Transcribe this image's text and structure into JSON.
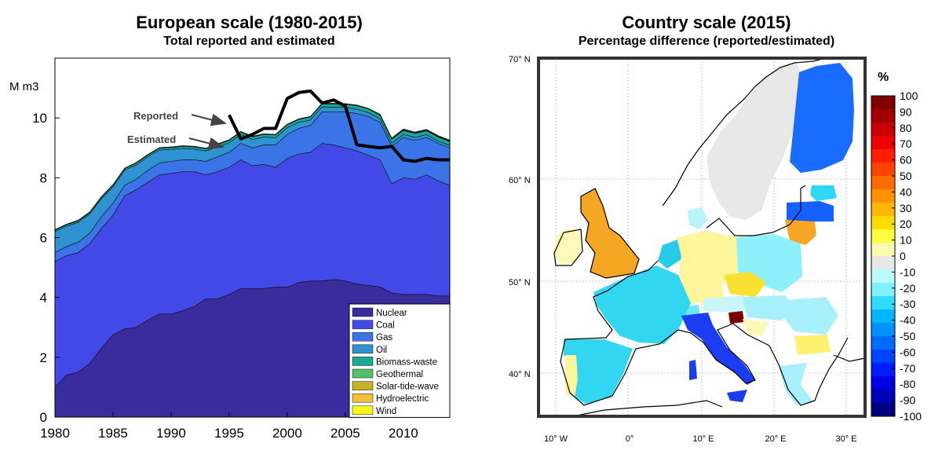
{
  "left_panel": {
    "title": "European scale (1980-2015)",
    "subtitle": "Total reported and estimated",
    "ylabel": "M m3",
    "annotations": {
      "reported": "Reported",
      "estimated": "Estimated"
    }
  },
  "right_panel": {
    "title": "Country scale (2015)",
    "subtitle": "Percentage difference (reported/estimated)",
    "colorbar_label": "%",
    "lat_labels": [
      "70° N",
      "60° N",
      "50° N",
      "40° N"
    ],
    "lon_labels": [
      "10° W",
      "0°",
      "10° E",
      "20° E",
      "30° E"
    ]
  },
  "chart_data": [
    {
      "type": "area",
      "stacked": true,
      "title": "European scale (1980-2015)",
      "subtitle": "Total reported and estimated",
      "ylabel": "M m3",
      "xlim": [
        1980,
        2014
      ],
      "ylim": [
        0,
        12
      ],
      "xticks": [
        1980,
        1985,
        1990,
        1995,
        2000,
        2005,
        2010
      ],
      "yticks": [
        0,
        2,
        4,
        6,
        8,
        10
      ],
      "grid": false,
      "legend_position": "bottom-right",
      "x": [
        1980,
        1981,
        1982,
        1983,
        1984,
        1985,
        1986,
        1987,
        1988,
        1989,
        1990,
        1991,
        1992,
        1993,
        1994,
        1995,
        1996,
        1997,
        1998,
        1999,
        2000,
        2001,
        2002,
        2003,
        2004,
        2005,
        2006,
        2007,
        2008,
        2009,
        2010,
        2011,
        2012,
        2013,
        2014
      ],
      "series": [
        {
          "name": "Nuclear",
          "color": "#3a2c9c",
          "values": [
            1.0,
            1.4,
            1.5,
            1.8,
            2.3,
            2.75,
            2.95,
            3.0,
            3.25,
            3.45,
            3.45,
            3.55,
            3.7,
            3.95,
            3.95,
            4.1,
            4.3,
            4.3,
            4.3,
            4.35,
            4.35,
            4.5,
            4.55,
            4.55,
            4.6,
            4.55,
            4.45,
            4.4,
            4.35,
            4.15,
            4.1,
            4.1,
            4.1,
            4.05,
            4.05
          ]
        },
        {
          "name": "Coal",
          "color": "#4249e6",
          "values": [
            4.2,
            4.0,
            4.0,
            4.0,
            4.0,
            4.0,
            4.45,
            4.6,
            4.6,
            4.65,
            4.7,
            4.65,
            4.5,
            4.15,
            4.25,
            4.25,
            4.3,
            4.1,
            4.15,
            4.0,
            4.3,
            4.3,
            4.3,
            4.6,
            4.5,
            4.45,
            4.45,
            4.35,
            4.25,
            3.65,
            3.9,
            3.85,
            4.0,
            3.85,
            3.7
          ]
        },
        {
          "name": "Gas",
          "color": "#3a74e6",
          "values": [
            0.3,
            0.3,
            0.35,
            0.35,
            0.4,
            0.4,
            0.35,
            0.35,
            0.4,
            0.4,
            0.4,
            0.4,
            0.4,
            0.45,
            0.5,
            0.5,
            0.55,
            0.6,
            0.65,
            0.75,
            0.8,
            0.85,
            0.9,
            1.05,
            1.1,
            1.2,
            1.25,
            1.3,
            1.25,
            1.25,
            1.35,
            1.3,
            1.25,
            1.25,
            1.25
          ]
        },
        {
          "name": "Oil",
          "color": "#2e93d0",
          "values": [
            0.7,
            0.68,
            0.66,
            0.64,
            0.6,
            0.55,
            0.5,
            0.48,
            0.45,
            0.43,
            0.4,
            0.38,
            0.36,
            0.35,
            0.33,
            0.32,
            0.3,
            0.28,
            0.26,
            0.24,
            0.22,
            0.2,
            0.18,
            0.17,
            0.16,
            0.15,
            0.14,
            0.13,
            0.12,
            0.11,
            0.1,
            0.1,
            0.09,
            0.08,
            0.08
          ]
        },
        {
          "name": "Biomass-waste",
          "color": "#19a79a",
          "values": [
            0.05,
            0.05,
            0.05,
            0.05,
            0.05,
            0.05,
            0.05,
            0.06,
            0.06,
            0.06,
            0.06,
            0.07,
            0.07,
            0.07,
            0.08,
            0.08,
            0.08,
            0.09,
            0.09,
            0.09,
            0.1,
            0.1,
            0.1,
            0.1,
            0.11,
            0.11,
            0.12,
            0.12,
            0.12,
            0.13,
            0.13,
            0.13,
            0.13,
            0.13,
            0.13
          ]
        },
        {
          "name": "Geothermal",
          "color": "#52c26a",
          "values": [
            0.01,
            0.01,
            0.01,
            0.01,
            0.01,
            0.01,
            0.01,
            0.01,
            0.01,
            0.01,
            0.01,
            0.01,
            0.01,
            0.01,
            0.01,
            0.01,
            0.01,
            0.01,
            0.01,
            0.01,
            0.01,
            0.01,
            0.01,
            0.01,
            0.01,
            0.01,
            0.01,
            0.01,
            0.01,
            0.01,
            0.01,
            0.01,
            0.01,
            0.01,
            0.01
          ]
        },
        {
          "name": "Solar-tide-wave",
          "color": "#c4b323",
          "values": [
            0.0,
            0.0,
            0.0,
            0.0,
            0.0,
            0.0,
            0.0,
            0.0,
            0.0,
            0.0,
            0.0,
            0.0,
            0.0,
            0.0,
            0.0,
            0.0,
            0.0,
            0.0,
            0.0,
            0.0,
            0.0,
            0.0,
            0.0,
            0.0,
            0.0,
            0.0,
            0.0,
            0.0,
            0.01,
            0.01,
            0.02,
            0.02,
            0.02,
            0.02,
            0.02
          ]
        },
        {
          "name": "Hydroelectric",
          "color": "#f2bf36",
          "values": [
            0.01,
            0.01,
            0.01,
            0.01,
            0.01,
            0.01,
            0.01,
            0.01,
            0.01,
            0.01,
            0.01,
            0.01,
            0.01,
            0.01,
            0.01,
            0.01,
            0.01,
            0.01,
            0.01,
            0.01,
            0.01,
            0.01,
            0.01,
            0.01,
            0.01,
            0.01,
            0.01,
            0.01,
            0.01,
            0.01,
            0.01,
            0.01,
            0.01,
            0.01,
            0.01
          ]
        },
        {
          "name": "Wind",
          "color": "#f7f71e",
          "values": [
            0.0,
            0.0,
            0.0,
            0.0,
            0.0,
            0.0,
            0.0,
            0.0,
            0.0,
            0.0,
            0.0,
            0.0,
            0.0,
            0.0,
            0.0,
            0.0,
            0.0,
            0.0,
            0.0,
            0.0,
            0.0,
            0.0,
            0.0,
            0.0,
            0.0,
            0.0,
            0.0,
            0.0,
            0.0,
            0.01,
            0.01,
            0.01,
            0.01,
            0.01,
            0.01
          ]
        }
      ],
      "lines": [
        {
          "name": "Reported",
          "color": "#000000",
          "x": [
            1995,
            1996,
            1997,
            1998,
            1999,
            2000,
            2001,
            2002,
            2003,
            2004,
            2005,
            2006,
            2007,
            2008,
            2009,
            2010,
            2011,
            2012,
            2013,
            2014
          ],
          "values": [
            10.1,
            9.3,
            9.45,
            9.65,
            9.65,
            10.65,
            10.85,
            10.9,
            10.5,
            10.6,
            10.4,
            9.1,
            9.05,
            9.0,
            9.05,
            8.6,
            8.55,
            8.65,
            8.6,
            8.6
          ]
        }
      ],
      "annotations": [
        {
          "text": "Reported",
          "points_to": "Reported line at 1995"
        },
        {
          "text": "Estimated",
          "points_to": "Stacked total at 1995"
        }
      ]
    },
    {
      "type": "heatmap",
      "title": "Country scale (2015)",
      "subtitle": "Percentage difference (reported/estimated)",
      "colorbar": {
        "label": "%",
        "ticks": [
          100,
          90,
          80,
          70,
          60,
          50,
          40,
          30,
          20,
          10,
          0,
          -10,
          -20,
          -30,
          -40,
          -50,
          -60,
          -70,
          -80,
          -90,
          -100
        ],
        "colors": [
          "#800000",
          "#a40000",
          "#c80000",
          "#ec0000",
          "#ff1e00",
          "#ff4300",
          "#ff6b00",
          "#ff9100",
          "#ffb600",
          "#ffdb00",
          "#ffff40",
          "#fbfbb0",
          "#e8e8e8",
          "#b8fbfb",
          "#80f0ff",
          "#33dbff",
          "#00b6ff",
          "#0091ff",
          "#006bff",
          "#0043ff",
          "#001eff",
          "#0000e6",
          "#0000b8",
          "#000080"
        ],
        "range": [
          -100,
          100
        ]
      },
      "lat_ticks": [
        70,
        60,
        50,
        40
      ],
      "lon_ticks": [
        -10,
        0,
        10,
        20,
        30
      ]
    }
  ]
}
